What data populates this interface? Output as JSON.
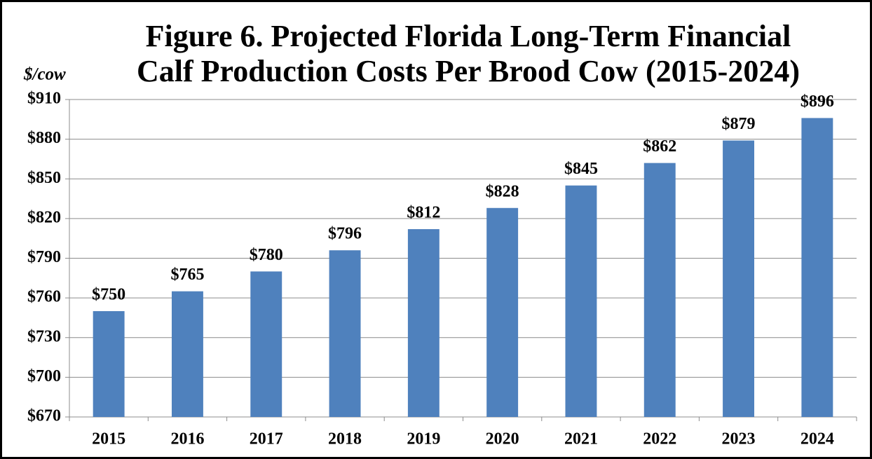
{
  "chart_data": {
    "type": "bar",
    "title": [
      "Figure 6. Projected Florida Long-Term Financial",
      "Calf Production Costs Per Brood Cow (2015-2024)"
    ],
    "y_label": "$/cow",
    "categories": [
      "2015",
      "2016",
      "2017",
      "2018",
      "2019",
      "2020",
      "2021",
      "2022",
      "2023",
      "2024"
    ],
    "values": [
      750,
      765,
      780,
      796,
      812,
      828,
      845,
      862,
      879,
      896
    ],
    "value_labels": [
      "$750",
      "$765",
      "$780",
      "$796",
      "$812",
      "$828",
      "$845",
      "$862",
      "$879",
      "$896"
    ],
    "color": "#4f81bd",
    "ylim": [
      670,
      910
    ],
    "yticks": [
      {
        "value": 670,
        "label": "$670"
      },
      {
        "value": 700,
        "label": "$700"
      },
      {
        "value": 730,
        "label": "$730"
      },
      {
        "value": 760,
        "label": "$760"
      },
      {
        "value": 790,
        "label": "$790"
      },
      {
        "value": 820,
        "label": "$820"
      },
      {
        "value": 850,
        "label": "$850"
      },
      {
        "value": 880,
        "label": "$880"
      },
      {
        "value": 910,
        "label": "$910"
      }
    ],
    "grid": true
  }
}
